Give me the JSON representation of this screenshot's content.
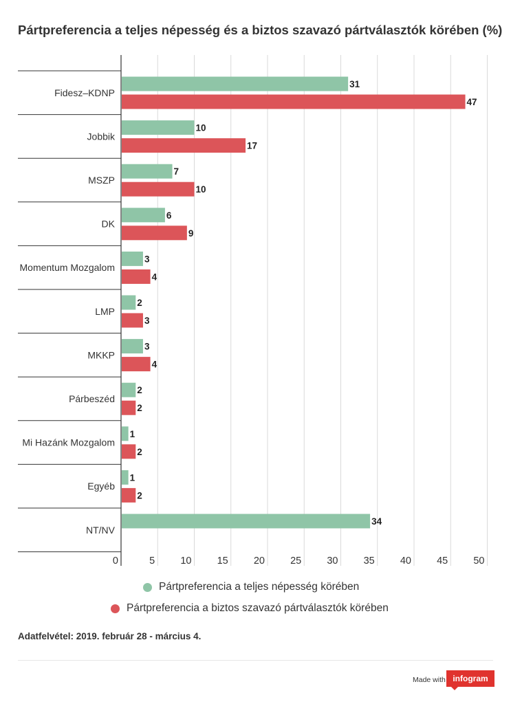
{
  "chart_title": "Pártpreferencia a teljes népesség és a biztos szavazó pártválasztók körében (%)",
  "colors": {
    "series1": "#8fc5a7",
    "series2": "#dc5559",
    "grid": "#d9d9d9",
    "axis": "#333333"
  },
  "chart_data": {
    "type": "bar",
    "orientation": "horizontal",
    "title": "Pártpreferencia a teljes népesség és a biztos szavazó pártválasztók körében (%)",
    "categories": [
      "Fidesz–KDNP",
      "Jobbik",
      "MSZP",
      "DK",
      "Momentum Mozgalom",
      "LMP",
      "MKKP",
      "Párbeszéd",
      "Mi Hazánk Mozgalom",
      "Egyéb",
      "NT/NV"
    ],
    "series": [
      {
        "name": "Pártpreferencia a teljes népesség körében",
        "values": [
          31,
          10,
          7,
          6,
          3,
          2,
          3,
          2,
          1,
          1,
          34
        ]
      },
      {
        "name": "Pártpreferencia a biztos szavazó pártválasztók körében",
        "values": [
          47,
          17,
          10,
          9,
          4,
          3,
          4,
          2,
          2,
          2,
          null
        ]
      }
    ],
    "xlim": [
      0,
      50
    ],
    "xticks": [
      0,
      5,
      10,
      15,
      20,
      25,
      30,
      35,
      40,
      45,
      50
    ],
    "grid": true,
    "legend_position": "bottom"
  },
  "footnote": "Adatfelvétel: 2019. február 28 - március 4.",
  "branding": {
    "made_with": "Made with",
    "brand_name": "infogram"
  }
}
